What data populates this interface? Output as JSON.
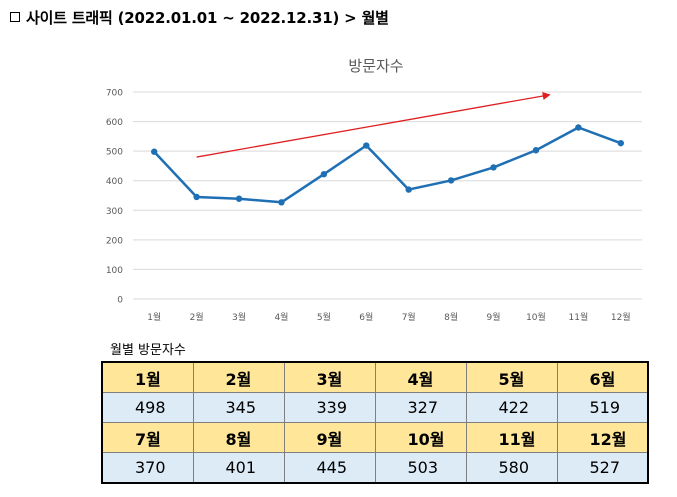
{
  "section": {
    "title": "사이트 트래픽 (2022.01.01 ~ 2022.12.31) > 월별"
  },
  "chart_data": {
    "type": "line",
    "title": "방문자수",
    "categories": [
      "1월",
      "2월",
      "3월",
      "4월",
      "5월",
      "6월",
      "7월",
      "8월",
      "9월",
      "10월",
      "11월",
      "12월"
    ],
    "series": [
      {
        "name": "방문자수",
        "values": [
          498,
          345,
          339,
          327,
          422,
          519,
          370,
          401,
          445,
          503,
          580,
          527
        ]
      }
    ],
    "ylim": [
      0,
      700
    ],
    "yticks": [
      0,
      100,
      200,
      300,
      400,
      500,
      600,
      700
    ],
    "grid": true,
    "trend_arrow": {
      "from_category": 1,
      "from_value": 480,
      "to_category": 9.3,
      "to_value": 690
    },
    "colors": {
      "line": "#1f6fb4",
      "grid": "#d9d9d9",
      "trend": "#e02020",
      "axis_text": "#595959"
    }
  },
  "table": {
    "caption": "월별 방문자수",
    "rows": [
      {
        "months": [
          "1월",
          "2월",
          "3월",
          "4월",
          "5월",
          "6월"
        ],
        "values": [
          "498",
          "345",
          "339",
          "327",
          "422",
          "519"
        ]
      },
      {
        "months": [
          "7월",
          "8월",
          "9월",
          "10월",
          "11월",
          "12월"
        ],
        "values": [
          "370",
          "401",
          "445",
          "503",
          "580",
          "527"
        ]
      }
    ]
  }
}
